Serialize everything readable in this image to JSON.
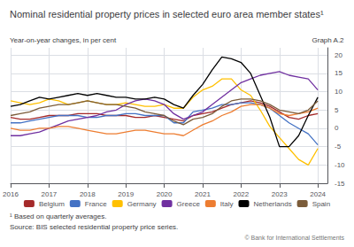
{
  "chart_data": {
    "type": "line",
    "title": "Nominal residential property prices in selected euro area member states¹",
    "subtitle": "Year-on-year changes, in per cent",
    "annotations": [
      "Graph A.2",
      "¹ Based on quarterly averages.",
      "Source: BIS selected residential property price series.",
      "© Bank for International Settlements"
    ],
    "x": [
      2016.0,
      2016.25,
      2016.5,
      2016.75,
      2017.0,
      2017.25,
      2017.5,
      2017.75,
      2018.0,
      2018.25,
      2018.5,
      2018.75,
      2019.0,
      2019.25,
      2019.5,
      2019.75,
      2020.0,
      2020.25,
      2020.5,
      2020.75,
      2021.0,
      2021.25,
      2021.5,
      2021.75,
      2022.0,
      2022.25,
      2022.5,
      2022.75,
      2023.0,
      2023.25,
      2023.5,
      2023.75,
      2024.0
    ],
    "xlim": [
      2016.0,
      2024.25
    ],
    "xticks": [
      2016,
      2017,
      2018,
      2019,
      2020,
      2021,
      2022,
      2023,
      2024
    ],
    "ylim": [
      -15,
      22
    ],
    "yticks": [
      -15,
      -10,
      -5,
      0,
      5,
      10,
      15,
      20
    ],
    "grid": true,
    "legend": "bottom",
    "series": [
      {
        "name": "Belgium",
        "color": "#a52a2a",
        "values": [
          3.0,
          2.5,
          2.5,
          3.0,
          3.5,
          3.5,
          3.5,
          4.0,
          4.0,
          4.0,
          3.5,
          3.5,
          3.5,
          3.0,
          3.0,
          3.5,
          3.0,
          2.5,
          2.0,
          3.5,
          4.0,
          4.5,
          5.5,
          6.5,
          7.0,
          7.5,
          7.0,
          6.0,
          4.5,
          3.0,
          2.5,
          3.5,
          4.0
        ]
      },
      {
        "name": "France",
        "color": "#4472c4",
        "values": [
          1.5,
          1.5,
          2.0,
          2.5,
          3.0,
          3.5,
          3.5,
          3.5,
          3.0,
          3.0,
          3.5,
          3.5,
          4.0,
          4.0,
          3.5,
          3.5,
          3.5,
          1.5,
          1.5,
          4.5,
          5.0,
          5.5,
          6.5,
          6.5,
          7.0,
          7.0,
          6.5,
          5.5,
          3.5,
          1.5,
          0.0,
          -1.5,
          -4.5
        ]
      },
      {
        "name": "Germany",
        "color": "#ffc000",
        "values": [
          7.5,
          7.0,
          6.5,
          7.0,
          8.0,
          7.5,
          6.5,
          7.0,
          7.5,
          7.0,
          6.5,
          6.5,
          7.0,
          6.5,
          6.0,
          6.0,
          6.5,
          5.5,
          5.5,
          8.5,
          10.5,
          11.5,
          13.5,
          13.5,
          10.5,
          9.0,
          5.0,
          0.5,
          -2.5,
          -5.5,
          -8.5,
          -10.0,
          -5.5
        ]
      },
      {
        "name": "Greece",
        "color": "#7030a0",
        "values": [
          -2.0,
          -2.0,
          -1.5,
          -1.0,
          0.0,
          1.0,
          2.0,
          2.5,
          3.0,
          3.5,
          4.5,
          5.0,
          6.5,
          7.5,
          8.0,
          7.5,
          6.5,
          4.0,
          2.5,
          3.5,
          4.5,
          6.5,
          8.5,
          10.5,
          12.5,
          13.5,
          14.5,
          15.0,
          15.5,
          14.5,
          14.0,
          13.5,
          10.5
        ]
      },
      {
        "name": "Italy",
        "color": "#ed7d31",
        "values": [
          0.0,
          -0.5,
          -0.5,
          0.0,
          0.0,
          0.5,
          0.5,
          0.0,
          -0.5,
          -1.0,
          -1.5,
          -1.5,
          -1.0,
          -0.5,
          -0.5,
          -1.0,
          -1.5,
          -1.5,
          -2.0,
          -0.5,
          1.0,
          2.0,
          3.5,
          4.5,
          6.0,
          6.5,
          6.5,
          5.5,
          4.0,
          3.5,
          4.0,
          4.5,
          5.5
        ]
      },
      {
        "name": "Netherlands",
        "color": "#000000",
        "values": [
          6.0,
          6.5,
          7.5,
          8.5,
          8.0,
          8.5,
          9.0,
          9.5,
          9.0,
          9.5,
          9.0,
          8.5,
          8.5,
          8.0,
          8.0,
          8.5,
          8.0,
          6.5,
          5.5,
          9.0,
          12.0,
          16.0,
          19.5,
          19.0,
          18.0,
          15.0,
          9.0,
          3.0,
          -5.0,
          -5.0,
          -2.0,
          3.5,
          8.5
        ]
      },
      {
        "name": "Spain",
        "color": "#7b5c3a",
        "values": [
          3.5,
          4.0,
          4.5,
          5.5,
          6.0,
          6.5,
          6.5,
          7.0,
          7.5,
          7.0,
          6.5,
          6.5,
          6.0,
          5.5,
          4.5,
          4.0,
          3.5,
          2.0,
          1.0,
          2.5,
          3.0,
          4.0,
          6.0,
          7.5,
          8.0,
          8.0,
          7.5,
          6.5,
          5.0,
          4.5,
          4.0,
          5.0,
          7.5
        ]
      }
    ]
  }
}
